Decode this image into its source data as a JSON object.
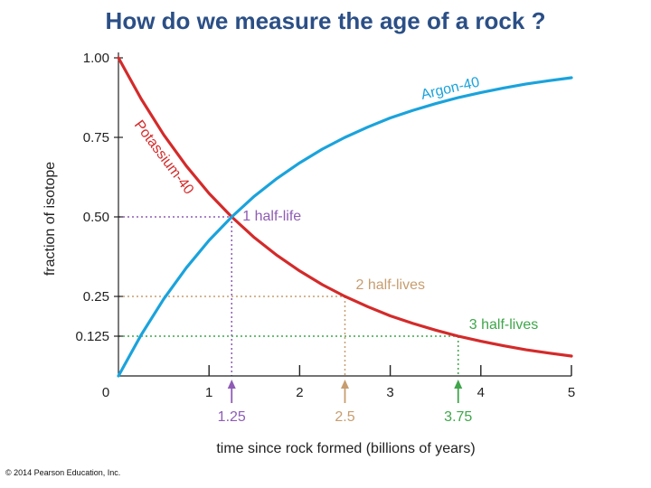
{
  "slide": {
    "title": "How do we measure the age of a rock ?",
    "copyright": "© 2014 Pearson Education, Inc."
  },
  "colors": {
    "potassium": "#d42a2a",
    "argon": "#1aa3dc",
    "one_half_life": "#8e5cb5",
    "two_half_lives": "#c79d6f",
    "three_half_lives": "#3fa64a",
    "axis": "#222222",
    "title": "#2b4f86"
  },
  "chart_data": {
    "type": "line",
    "xlabel": "time since rock formed (billions of years)",
    "ylabel": "fraction of isotope",
    "xlim": [
      0,
      5
    ],
    "ylim": [
      0,
      1
    ],
    "x_ticks": [
      {
        "value": 0,
        "label": "0"
      },
      {
        "value": 1,
        "label": "1"
      },
      {
        "value": 2,
        "label": "2"
      },
      {
        "value": 3,
        "label": "3"
      },
      {
        "value": 4,
        "label": "4"
      },
      {
        "value": 5,
        "label": "5"
      }
    ],
    "y_ticks": [
      {
        "value": 0.125,
        "label": "0.125"
      },
      {
        "value": 0.25,
        "label": "0.25"
      },
      {
        "value": 0.5,
        "label": "0.50"
      },
      {
        "value": 0.75,
        "label": "0.75"
      },
      {
        "value": 1.0,
        "label": "1.00"
      }
    ],
    "half_life": 1.25,
    "series": [
      {
        "name": "Potassium-40",
        "x": [
          0,
          0.25,
          0.5,
          0.75,
          1.0,
          1.25,
          1.5,
          1.75,
          2.0,
          2.25,
          2.5,
          2.75,
          3.0,
          3.25,
          3.5,
          3.75,
          4.0,
          4.25,
          4.5,
          4.75,
          5.0
        ],
        "y": [
          1.0,
          0.871,
          0.758,
          0.66,
          0.574,
          0.5,
          0.435,
          0.379,
          0.33,
          0.287,
          0.25,
          0.218,
          0.189,
          0.165,
          0.144,
          0.125,
          0.109,
          0.095,
          0.082,
          0.072,
          0.0625
        ]
      },
      {
        "name": "Argon-40",
        "x": [
          0,
          0.25,
          0.5,
          0.75,
          1.0,
          1.25,
          1.5,
          1.75,
          2.0,
          2.25,
          2.5,
          2.75,
          3.0,
          3.25,
          3.5,
          3.75,
          4.0,
          4.25,
          4.5,
          4.75,
          5.0
        ],
        "y": [
          0.0,
          0.129,
          0.242,
          0.34,
          0.426,
          0.5,
          0.565,
          0.621,
          0.67,
          0.713,
          0.75,
          0.782,
          0.811,
          0.835,
          0.856,
          0.875,
          0.891,
          0.905,
          0.918,
          0.928,
          0.9375
        ]
      }
    ],
    "markers": [
      {
        "x": 1.25,
        "y": 0.5,
        "x_label": "1.25",
        "text": "1 half-life",
        "color_key": "one_half_life"
      },
      {
        "x": 2.5,
        "y": 0.25,
        "x_label": "2.5",
        "text": "2 half-lives",
        "color_key": "two_half_lives"
      },
      {
        "x": 3.75,
        "y": 0.125,
        "x_label": "3.75",
        "text": "3 half-lives",
        "color_key": "three_half_lives"
      }
    ]
  }
}
